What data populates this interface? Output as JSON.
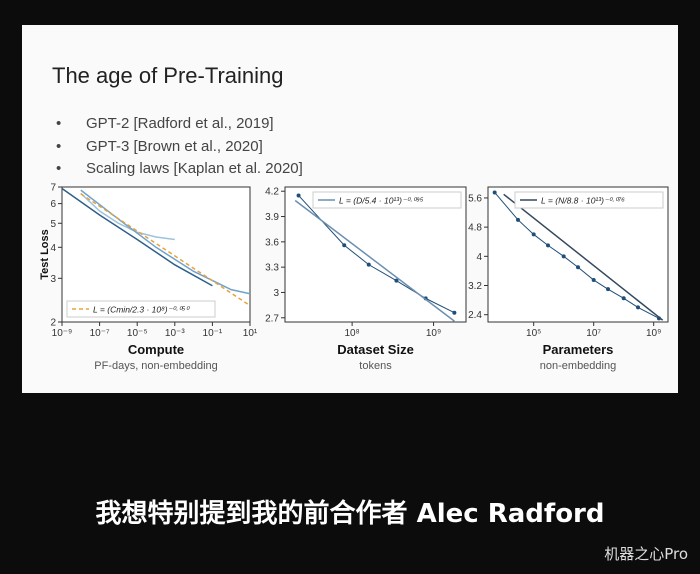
{
  "slide": {
    "title": "The age of Pre-Training",
    "bullets": [
      "GPT-2 [Radford et al., 2019]",
      "GPT-3 [Brown et al., 2020]",
      "Scaling laws [Kaplan et al. 2020]"
    ]
  },
  "chart_data": [
    {
      "type": "line",
      "log_x": true,
      "log_y": true,
      "x_label": "Compute",
      "x_sublabel": "PF-days, non-embedding",
      "y_label": "Test Loss",
      "xlim": [
        1e-09,
        10
      ],
      "ylim": [
        2,
        7
      ],
      "xticks": [
        {
          "value": 1e-09,
          "label": "10⁻⁹"
        },
        {
          "value": 1e-07,
          "label": "10⁻⁷"
        },
        {
          "value": 1e-05,
          "label": "10⁻⁵"
        },
        {
          "value": 0.001,
          "label": "10⁻³"
        },
        {
          "value": 0.1,
          "label": "10⁻¹"
        },
        {
          "value": 10,
          "label": "10¹"
        }
      ],
      "yticks": [
        2,
        3,
        4,
        5,
        6,
        7
      ],
      "legend": "lower left",
      "series": [
        {
          "color": "#9cc3e0",
          "x": [
            1e-08,
            1e-07,
            1e-06,
            1e-05,
            0.0001,
            0.001
          ],
          "values": [
            6.6,
            5.6,
            5.0,
            4.6,
            4.4,
            4.3
          ]
        },
        {
          "color": "#6fa3cc",
          "x": [
            1e-08,
            1e-06,
            0.0001,
            0.01,
            1,
            10
          ],
          "values": [
            6.8,
            5.2,
            4.0,
            3.2,
            2.7,
            2.6
          ]
        },
        {
          "color": "#2f5f8a",
          "x": [
            1e-09,
            1e-07,
            1e-05,
            0.001,
            0.1
          ],
          "values": [
            6.9,
            5.4,
            4.3,
            3.4,
            2.8
          ]
        },
        {
          "name": "L = (Cmin/2.3 · 10⁸)⁻⁰·⁰⁵⁰",
          "color": "#e8a33a",
          "dashed": true,
          "x": [
            1e-08,
            10
          ],
          "values": [
            6.57,
            2.33
          ]
        }
      ]
    },
    {
      "type": "line",
      "log_x": true,
      "log_y": false,
      "x_label": "Dataset Size",
      "x_sublabel": "tokens",
      "xlim": [
        15000000,
        2500000000
      ],
      "ylim": [
        2.65,
        4.25
      ],
      "xticks": [
        {
          "value": 100000000,
          "label": "10⁸"
        },
        {
          "value": 1000000000,
          "label": "10⁹"
        }
      ],
      "yticks": [
        2.7,
        3.0,
        3.3,
        3.6,
        3.9,
        4.2
      ],
      "legend": "upper right",
      "series": [
        {
          "color": "#1f4e79",
          "markers": true,
          "x": [
            22000000,
            80000000,
            160000000,
            350000000,
            800000000,
            1800000000
          ],
          "values": [
            4.15,
            3.56,
            3.33,
            3.14,
            2.93,
            2.76
          ]
        },
        {
          "name": "L = (D/5.4 · 10¹³)⁻⁰·⁰⁹⁵",
          "color": "#6b8fb0",
          "x": [
            20000000,
            1800000000
          ],
          "values": [
            4.09,
            2.66
          ]
        }
      ]
    },
    {
      "type": "line",
      "log_x": true,
      "log_y": false,
      "x_label": "Parameters",
      "x_sublabel": "non-embedding",
      "xlim": [
        3000,
        3000000000
      ],
      "ylim": [
        2.2,
        5.9
      ],
      "xticks": [
        {
          "value": 100000,
          "label": "10⁵"
        },
        {
          "value": 10000000,
          "label": "10⁷"
        },
        {
          "value": 1000000000,
          "label": "10⁹"
        }
      ],
      "yticks": [
        2.4,
        3.2,
        4.0,
        4.8,
        5.6
      ],
      "legend": "upper right",
      "series": [
        {
          "color": "#1f4e79",
          "markers": true,
          "x": [
            5000,
            30000,
            100000,
            300000,
            1000000,
            3000000,
            10000000,
            30000000,
            100000000,
            300000000,
            1500000000
          ],
          "values": [
            5.75,
            5.0,
            4.6,
            4.3,
            4.0,
            3.7,
            3.35,
            3.1,
            2.85,
            2.6,
            2.3
          ]
        },
        {
          "name": "L = (N/8.8 · 10¹³)⁻⁰·⁰⁷⁶",
          "color": "#34495e",
          "x": [
            10000,
            2000000000
          ],
          "values": [
            5.7,
            2.25
          ]
        }
      ]
    }
  ],
  "caption": "我想特别提到我的前合作者 Alec Radford",
  "watermark": "机器之心Pro"
}
